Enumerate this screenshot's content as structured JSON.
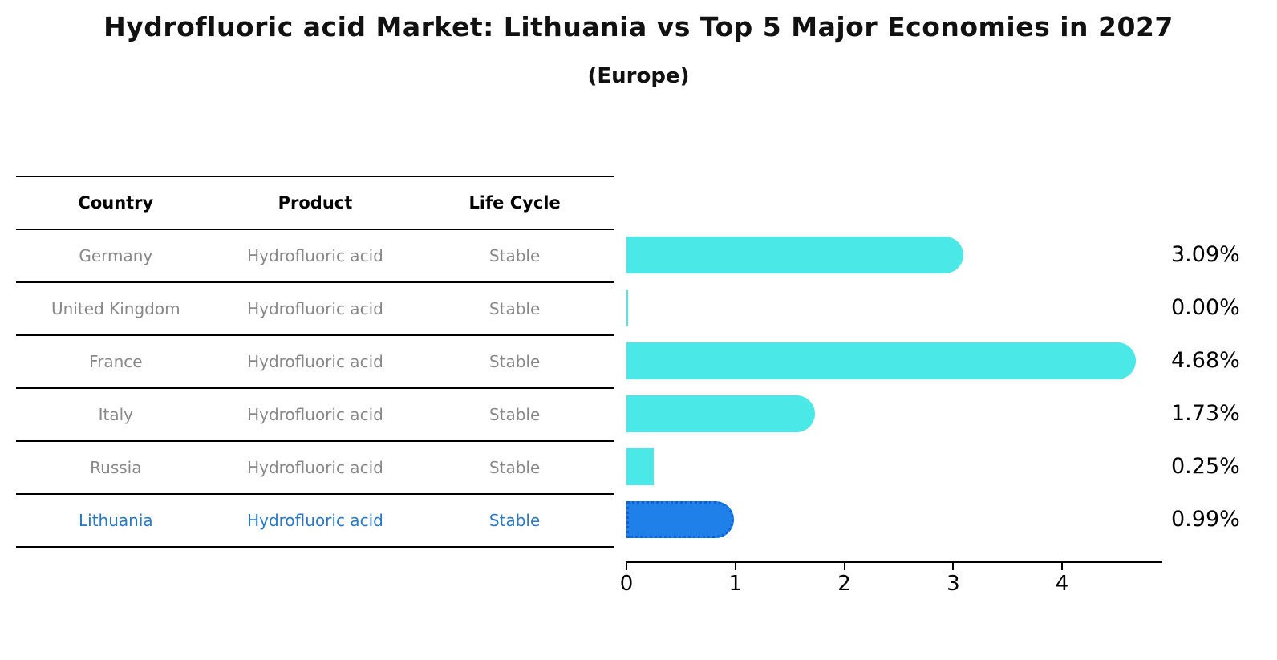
{
  "title": "Hydrofluoric acid Market: Lithuania vs Top 5 Major Economies in 2027",
  "subtitle": "(Europe)",
  "table": {
    "headers": [
      "Country",
      "Product",
      "Life Cycle"
    ],
    "rows": [
      {
        "country": "Germany",
        "product": "Hydrofluoric acid",
        "life_cycle": "Stable"
      },
      {
        "country": "United Kingdom",
        "product": "Hydrofluoric acid",
        "life_cycle": "Stable"
      },
      {
        "country": "France",
        "product": "Hydrofluoric acid",
        "life_cycle": "Stable"
      },
      {
        "country": "Italy",
        "product": "Hydrofluoric acid",
        "life_cycle": "Stable"
      },
      {
        "country": "Russia",
        "product": "Hydrofluoric acid",
        "life_cycle": "Stable"
      },
      {
        "country": "Lithuania",
        "product": "Hydrofluoric acid",
        "life_cycle": "Stable"
      }
    ]
  },
  "chart_data": {
    "type": "bar",
    "orientation": "horizontal",
    "title": "Hydrofluoric acid Market: Lithuania vs Top 5 Major Economies in 2027",
    "subtitle": "(Europe)",
    "categories": [
      "Germany",
      "United Kingdom",
      "France",
      "Italy",
      "Russia",
      "Lithuania"
    ],
    "values": [
      3.09,
      0.0,
      4.68,
      1.73,
      0.25,
      0.99
    ],
    "value_labels": [
      "3.09%",
      "0.00%",
      "4.68%",
      "1.73%",
      "0.25%",
      "0.99%"
    ],
    "xticks": [
      0,
      1,
      2,
      3,
      4
    ],
    "xlim": [
      0,
      4.92
    ],
    "xlabel": "",
    "ylabel": "",
    "grid": false,
    "legend": "none",
    "bar_color": "#4ae8e6",
    "highlight_index": 5,
    "highlight_bar_color": "#1e80e8",
    "highlight_border_color": "#0b62d8",
    "highlight_text_color": "#2878c8",
    "row_text_color": "#888888"
  }
}
